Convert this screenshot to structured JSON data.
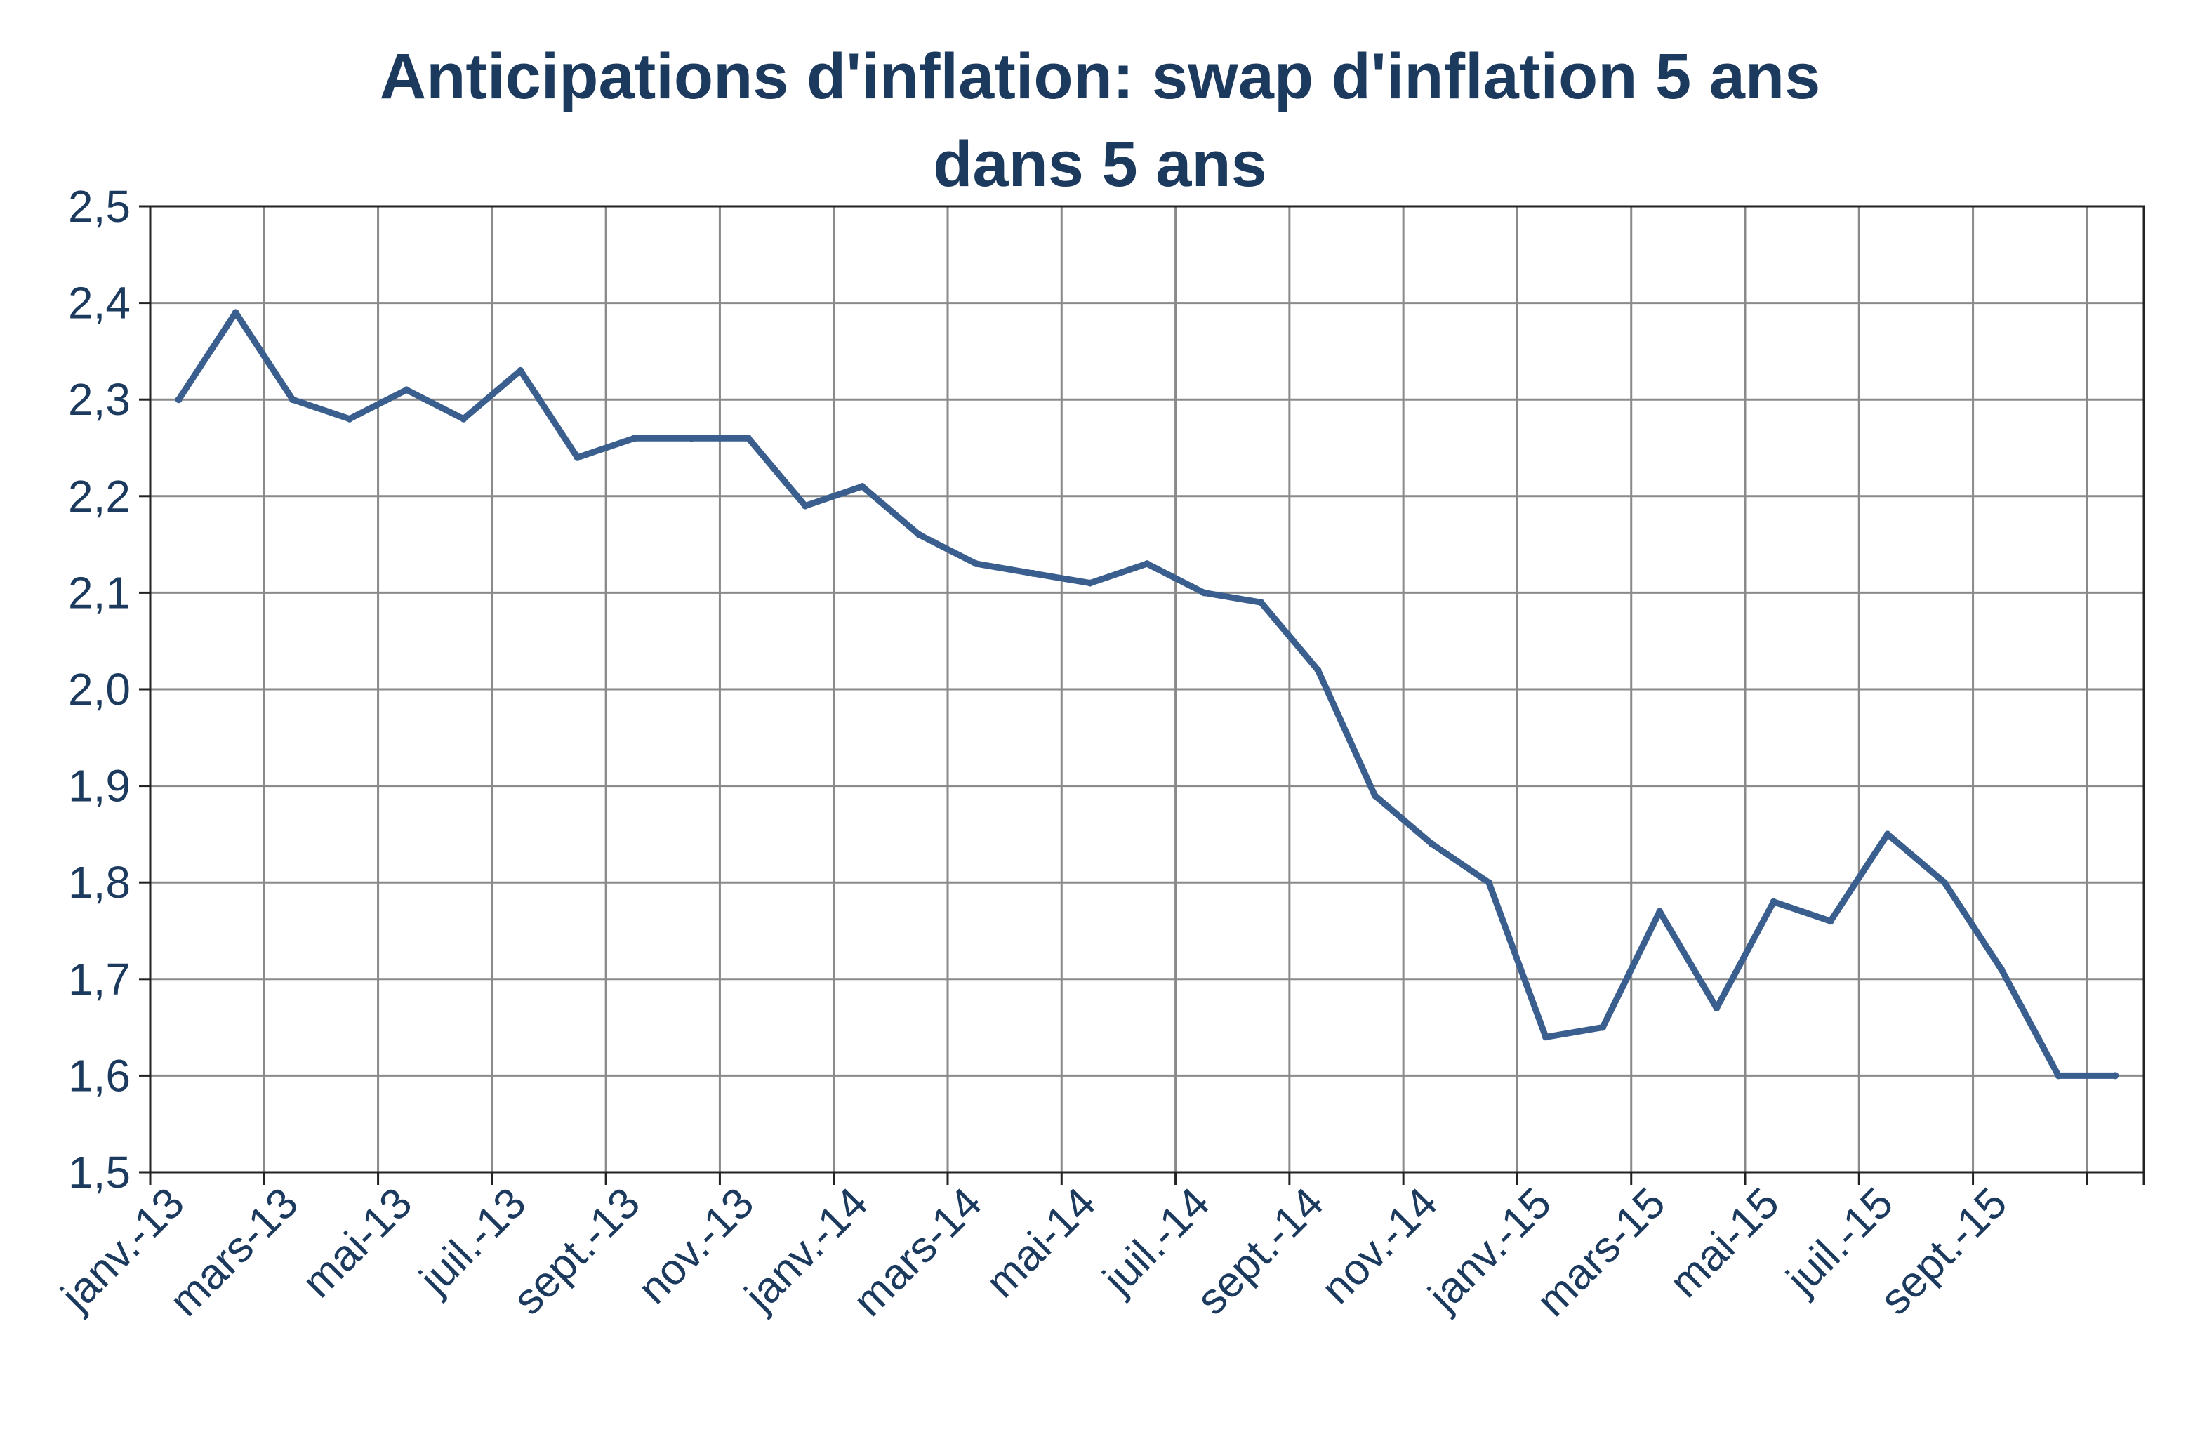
{
  "chart_data": {
    "type": "line",
    "title_lines": [
      "Anticipations d'inflation: swap d'inflation 5 ans",
      "dans 5 ans"
    ],
    "ylim": [
      1.5,
      2.5
    ],
    "y_ticks": [
      "2,5",
      "2,4",
      "2,3",
      "2,2",
      "2,1",
      "2,0",
      "1,9",
      "1,8",
      "1,7",
      "1,6",
      "1,5"
    ],
    "x_tick_labels": [
      "janv.-13",
      "mars-13",
      "mai-13",
      "juil.-13",
      "sept.-13",
      "nov.-13",
      "janv.-14",
      "mars-14",
      "mai-14",
      "juil.-14",
      "sept.-14",
      "nov.-14",
      "janv.-15",
      "mars-15",
      "mai-15",
      "juil.-15",
      "sept.-15"
    ],
    "grid": true,
    "legend": "none",
    "series": [
      {
        "color": "#3a5f8f",
        "x": [
          "janv.-13",
          "févr.-13",
          "mars-13",
          "avr.-13",
          "mai-13",
          "juin-13",
          "juil.-13",
          "août-13",
          "sept.-13",
          "oct.-13",
          "nov.-13",
          "déc.-13",
          "janv.-14",
          "févr.-14",
          "mars-14",
          "avr.-14",
          "mai-14",
          "juin-14",
          "juil.-14",
          "août-14",
          "sept.-14",
          "oct.-14",
          "nov.-14",
          "déc.-14",
          "janv.-15",
          "févr.-15",
          "mars-15",
          "avr.-15",
          "mai-15",
          "juin-15",
          "juil.-15",
          "août-15",
          "sept.-15",
          "oct.-15",
          "nov.-15"
        ],
        "values": [
          2.3,
          2.39,
          2.3,
          2.28,
          2.31,
          2.28,
          2.33,
          2.24,
          2.26,
          2.26,
          2.26,
          2.19,
          2.21,
          2.16,
          2.13,
          2.12,
          2.11,
          2.13,
          2.1,
          2.09,
          2.02,
          1.89,
          1.84,
          1.8,
          1.64,
          1.65,
          1.77,
          1.67,
          1.78,
          1.76,
          1.85,
          1.8,
          1.71,
          1.6,
          1.6
        ]
      }
    ]
  }
}
